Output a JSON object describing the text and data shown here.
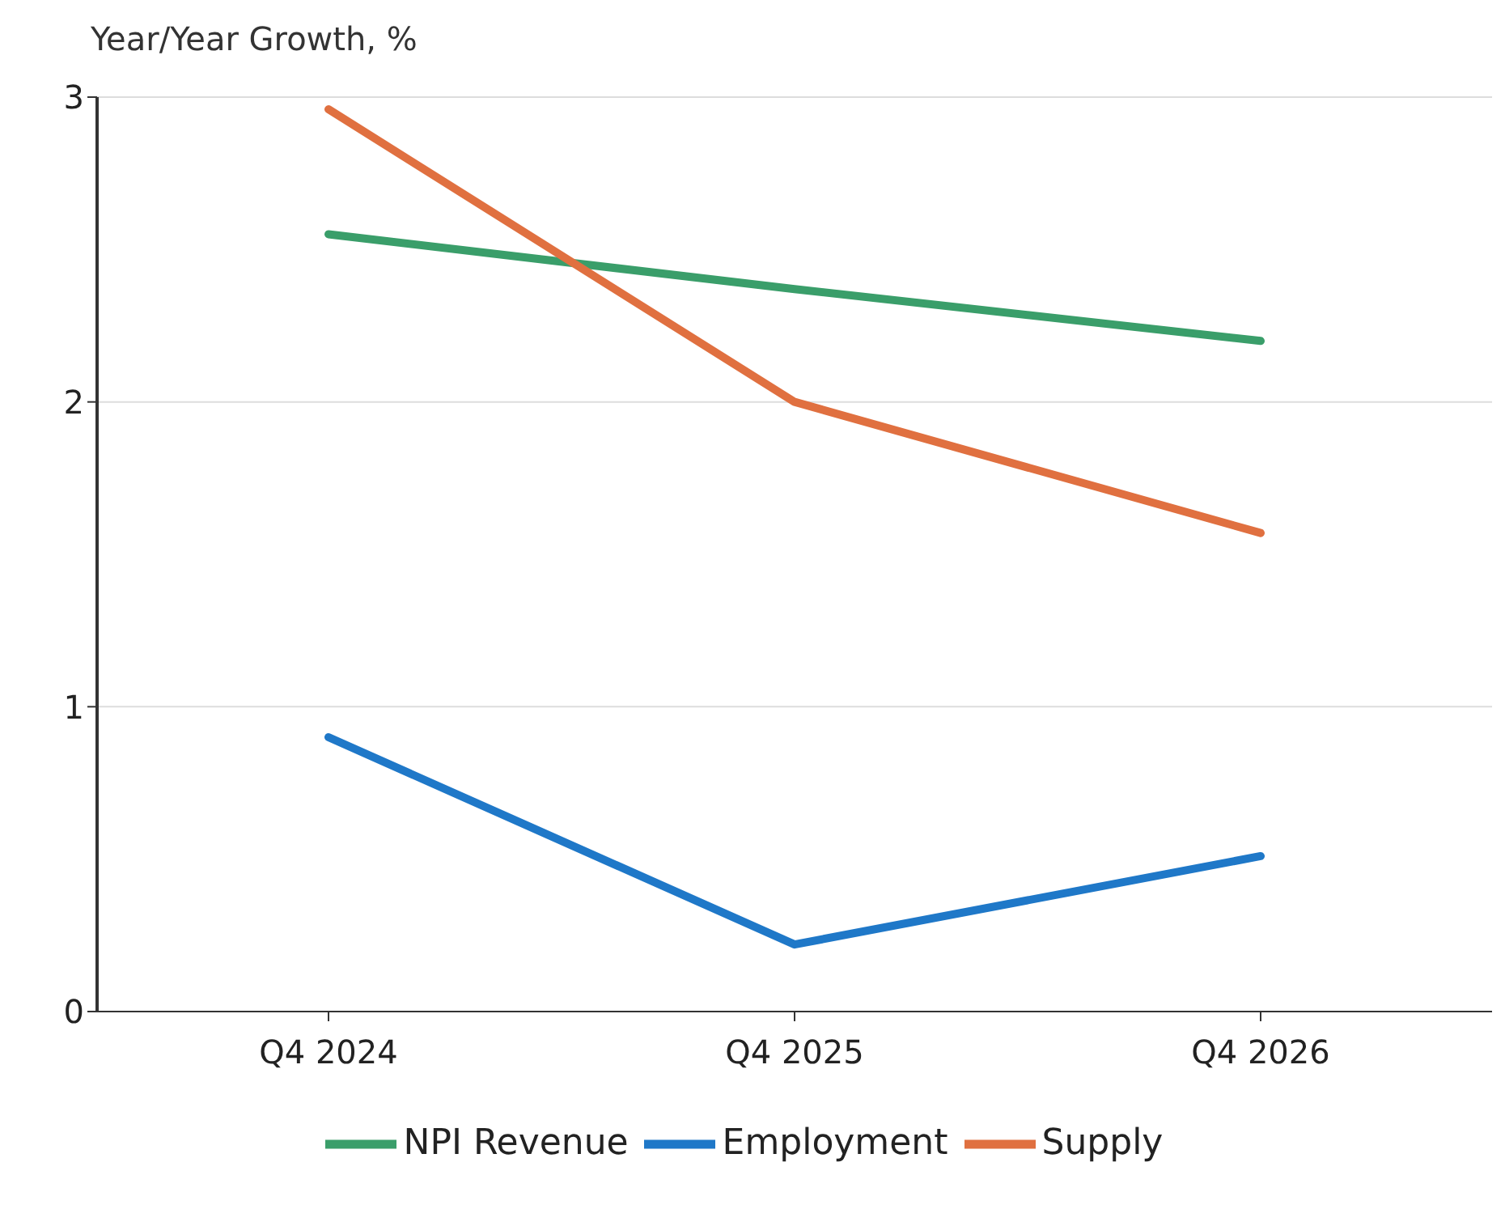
{
  "chart_data": {
    "type": "line",
    "ylabel": "Year/Year Growth, %",
    "categories": [
      "Q4 2024",
      "Q4 2025",
      "Q4 2026"
    ],
    "series": [
      {
        "name": "NPI Revenue",
        "color": "#3a9e6a",
        "values": [
          2.55,
          2.37,
          2.2
        ]
      },
      {
        "name": "Employment",
        "color": "#1f78c8",
        "values": [
          0.9,
          0.22,
          0.51
        ]
      },
      {
        "name": "Supply",
        "color": "#e07040",
        "values": [
          2.96,
          2.0,
          1.57
        ]
      }
    ],
    "ylim": [
      0,
      3
    ],
    "yticks": [
      0,
      1,
      2,
      3
    ],
    "grid": "y",
    "legend": "bottom",
    "marker": "none",
    "line_style": "solid"
  }
}
